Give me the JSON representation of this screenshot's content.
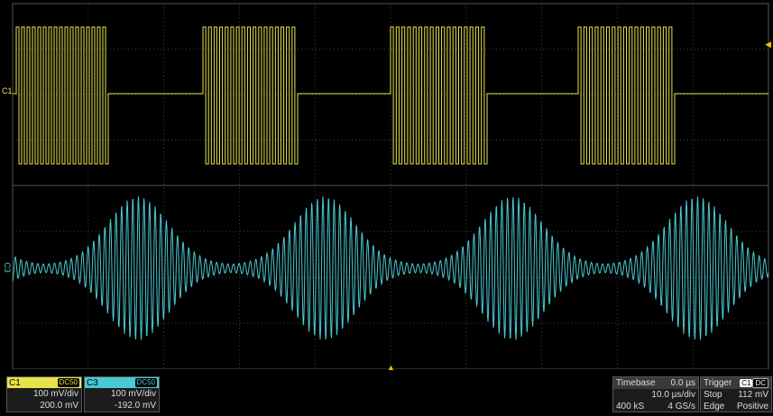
{
  "colors": {
    "ch1": "#e8e34a",
    "ch3": "#49c9d3",
    "grid": "#555555",
    "trigger": "#f5c400"
  },
  "markers": {
    "ch1_label": "C1",
    "ch3_label": "C3"
  },
  "ch1": {
    "name": "C1",
    "coupling": "DC50",
    "volts_div": "100 mV/div",
    "offset": "200.0 mV"
  },
  "ch3": {
    "name": "C3",
    "coupling": "DC50",
    "volts_div": "100 mV/div",
    "offset": "-192.0 mV"
  },
  "timebase": {
    "label": "Timebase",
    "delay": "0.0 µs",
    "time_div": "10.0 µs/div",
    "samples": "400 kS",
    "rate": "4 GS/s"
  },
  "trigger": {
    "label": "Trigger",
    "source": "C1",
    "coupling": "DC",
    "mode": "Stop",
    "level": "112 mV",
    "type": "Edge",
    "slope": "Positive"
  }
}
